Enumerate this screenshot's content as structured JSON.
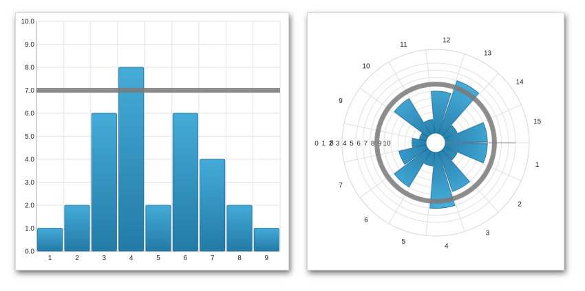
{
  "chart_data": [
    {
      "type": "bar",
      "categories": [
        "1",
        "2",
        "3",
        "4",
        "5",
        "6",
        "7",
        "8",
        "9"
      ],
      "values": [
        1,
        2,
        6,
        8,
        2,
        6,
        4,
        2,
        1
      ],
      "ylim": [
        0,
        10
      ],
      "yticks": [
        "0.0",
        "1.0",
        "2.0",
        "3.0",
        "4.0",
        "5.0",
        "6.0",
        "7.0",
        "8.0",
        "9.0",
        "10.0"
      ],
      "reference_line": 7,
      "grid": true,
      "color": "#2e8fc0"
    },
    {
      "type": "bar",
      "subtype": "polar",
      "categories": [
        "1",
        "2",
        "3",
        "4",
        "5",
        "6",
        "7",
        "8",
        "9",
        "10",
        "11",
        "12",
        "13",
        "14",
        "15"
      ],
      "values": [
        6,
        2,
        6,
        8,
        2,
        6,
        4,
        2,
        1,
        6,
        2,
        6,
        8,
        2,
        6
      ],
      "rlim": [
        0,
        10
      ],
      "rticks": [
        "0",
        "1",
        "2",
        "3",
        "4",
        "5",
        "6",
        "7",
        "8",
        "9",
        "10"
      ],
      "reference_circle": 7,
      "grid": true,
      "color": "#2e8fc0"
    }
  ]
}
